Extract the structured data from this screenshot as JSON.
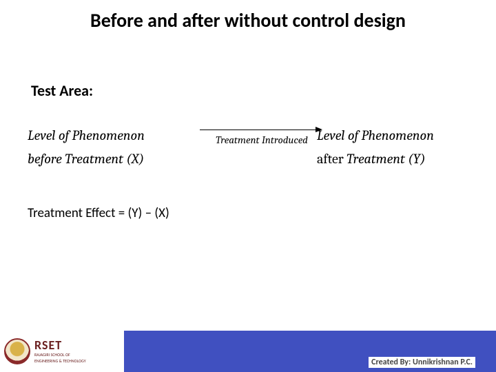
{
  "title": "Before and after without control design",
  "area_label": "Test Area:",
  "left": {
    "line1": "Level of Phenomenon",
    "line2": "before Treatment (X)"
  },
  "right": {
    "line1": "Level of Phenomenon",
    "after_word": "after",
    "treatment_y": " Treatment (Y)"
  },
  "arrow_label": "Treatment Introduced",
  "effect": "Treatment Effect = (Y) – (X)",
  "logo": {
    "big": "RSET",
    "sm1": "RAJAGIRI SCHOOL OF",
    "sm2": "ENGINEERING & TECHNOLOGY"
  },
  "credit": "Created By: Unnikrishnan P.C.",
  "colors": {
    "footer": "#4050c0",
    "logo_text": "#6a1f1f"
  }
}
